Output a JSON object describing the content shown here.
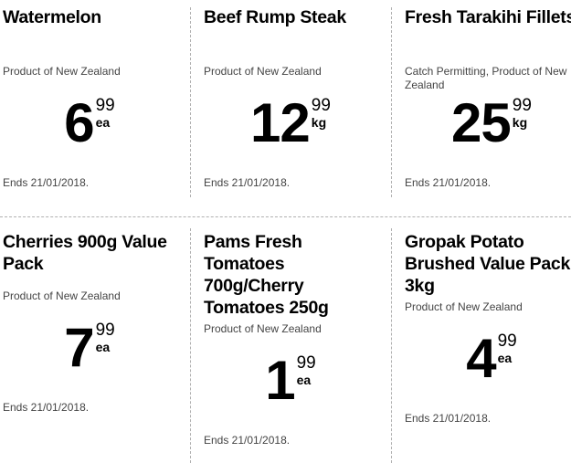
{
  "products": [
    {
      "title": "Watermelon",
      "desc": "Product of New Zealand",
      "dollars": "6",
      "cents": "99",
      "unit": "ea",
      "ends": "Ends 21/01/2018."
    },
    {
      "title": "Beef Rump Steak",
      "desc": "Product of New Zealand",
      "dollars": "12",
      "cents": "99",
      "unit": "kg",
      "ends": "Ends 21/01/2018."
    },
    {
      "title": "Fresh Tarakihi Fillets",
      "desc": "Catch Permitting, Product of New Zealand",
      "dollars": "25",
      "cents": "99",
      "unit": "kg",
      "ends": "Ends 21/01/2018."
    },
    {
      "title": "Cherries 900g Value Pack",
      "desc": "Product of New Zealand",
      "dollars": "7",
      "cents": "99",
      "unit": "ea",
      "ends": "Ends 21/01/2018."
    },
    {
      "title": "Pams Fresh Tomatoes 700g/Cherry Tomatoes 250g",
      "desc": "Product of New Zealand",
      "dollars": "1",
      "cents": "99",
      "unit": "ea",
      "ends": "Ends 21/01/2018."
    },
    {
      "title": "Gropak Potato Brushed Value Pack 3kg",
      "desc": "Product of New Zealand",
      "dollars": "4",
      "cents": "99",
      "unit": "ea",
      "ends": "Ends 21/01/2018."
    }
  ]
}
